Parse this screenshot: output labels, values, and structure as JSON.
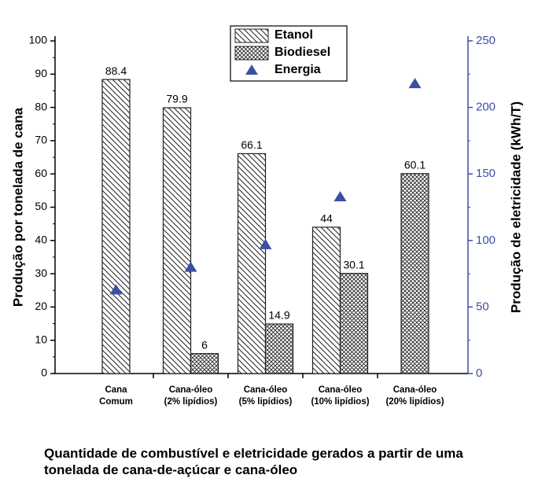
{
  "chart_data": {
    "type": "bar",
    "categories": [
      "Cana\nComum",
      "Cana-óleo\n(2% lipídios)",
      "Cana-óleo\n(5% lipídios)",
      "Cana-óleo\n(10% lipídios)",
      "Cana-óleo\n(20% lipídios)"
    ],
    "series": [
      {
        "name": "Etanol",
        "color": "#222222",
        "fill": "hatch",
        "values": [
          88.4,
          79.9,
          66.1,
          44,
          null
        ]
      },
      {
        "name": "Biodiesel",
        "color": "#222222",
        "fill": "crosshatch",
        "values": [
          null,
          6,
          14.9,
          30.1,
          60.1
        ]
      },
      {
        "name": "Energia",
        "color": "#3b4fa6",
        "marker": "triangle",
        "axis": "y2",
        "values": [
          63,
          80,
          97,
          133,
          218
        ]
      }
    ],
    "ylabel": "Produção por tonelada de cana",
    "y2label": "Produção de eletricidade (kWh/T)",
    "ylim": [
      0,
      100
    ],
    "yticks": [
      0,
      10,
      20,
      30,
      40,
      50,
      60,
      70,
      80,
      90,
      100
    ],
    "y2lim": [
      0,
      250
    ],
    "y2ticks": [
      0,
      50,
      100,
      150,
      200,
      250
    ],
    "y2color": "#3b4fa6",
    "caption": "Quantidade de combustível e eletricidade gerados a partir de uma tonelada de cana-de-açúcar e cana-óleo"
  }
}
